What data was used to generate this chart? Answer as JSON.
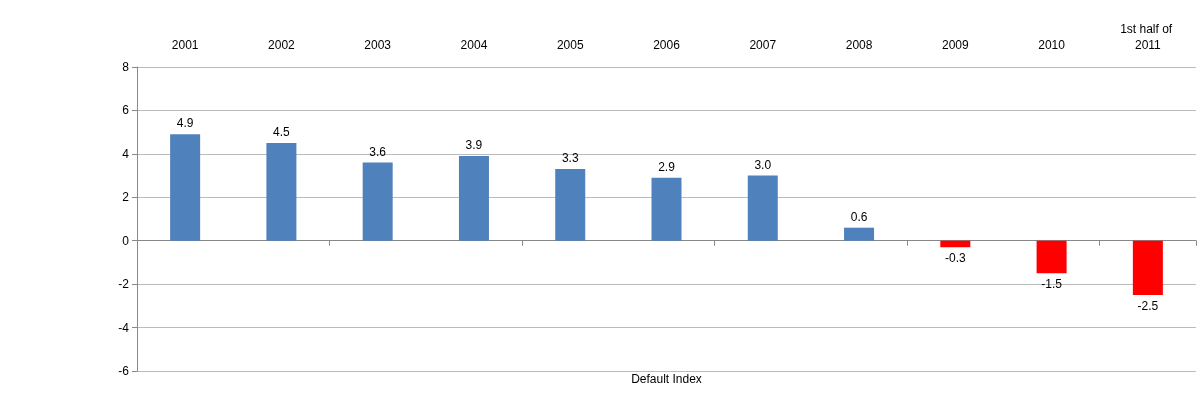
{
  "chart_data": {
    "type": "bar",
    "xlabel": "Default Index",
    "categories": [
      "2001",
      "2002",
      "2003",
      "2004",
      "2005",
      "2006",
      "2007",
      "2008",
      "2009",
      "2010",
      "1st half of 2011"
    ],
    "values": [
      4.9,
      4.5,
      3.6,
      3.9,
      3.3,
      2.9,
      3.0,
      0.6,
      -0.3,
      -1.5,
      -2.5
    ],
    "value_labels": [
      "4.9",
      "4.5",
      "3.6",
      "3.9",
      "3.3",
      "2.9",
      "3.0",
      "0.6",
      "-0.3",
      "-1.5",
      "-2.5"
    ],
    "colors": [
      "#4f81bd",
      "#4f81bd",
      "#4f81bd",
      "#4f81bd",
      "#4f81bd",
      "#4f81bd",
      "#4f81bd",
      "#4f81bd",
      "#ff0000",
      "#ff0000",
      "#ff0000"
    ],
    "ylim": [
      -6,
      8
    ],
    "yticks": [
      -6,
      -4,
      -2,
      0,
      2,
      4,
      6,
      8
    ],
    "grid": "y"
  }
}
